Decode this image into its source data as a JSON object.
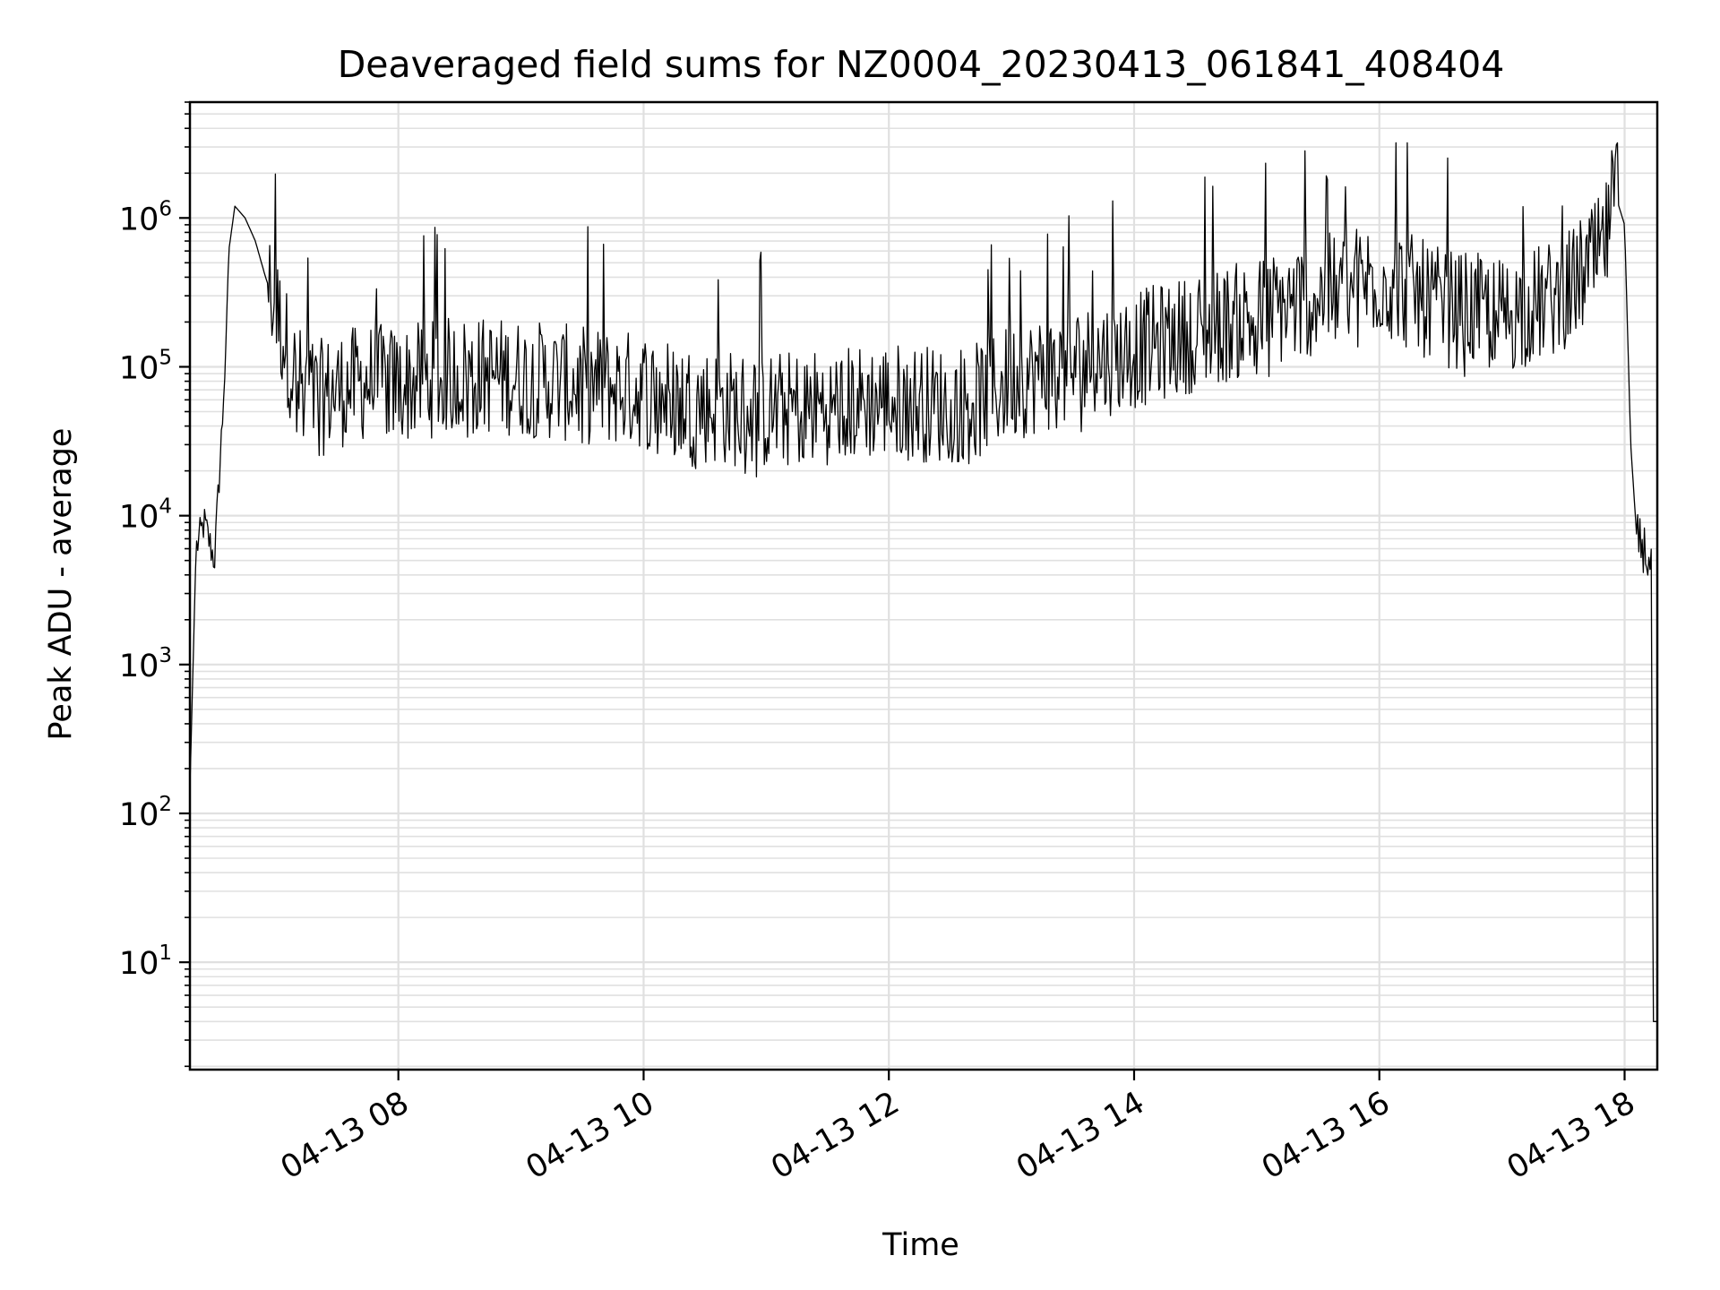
{
  "chart_data": {
    "type": "line",
    "title": "Deaveraged field sums for NZ0004_20230413_061841_408404",
    "xlabel": "Time",
    "ylabel": "Peak ADU - average",
    "yscale": "log",
    "ylim": [
      1.9,
      6000000
    ],
    "xlim": [
      "2023-04-13 06:18",
      "2023-04-13 18:16"
    ],
    "grid": true,
    "line_color": "#000000",
    "grid_color": "#e0e0e0",
    "x_ticks": [
      {
        "value": "2023-04-13 08:00",
        "label": "04-13 08"
      },
      {
        "value": "2023-04-13 10:00",
        "label": "04-13 10"
      },
      {
        "value": "2023-04-13 12:00",
        "label": "04-13 12"
      },
      {
        "value": "2023-04-13 14:00",
        "label": "04-13 14"
      },
      {
        "value": "2023-04-13 16:00",
        "label": "04-13 16"
      },
      {
        "value": "2023-04-13 18:00",
        "label": "04-13 18"
      }
    ],
    "y_ticks": [
      {
        "value": 10,
        "base": "10",
        "exp": "1"
      },
      {
        "value": 100,
        "base": "10",
        "exp": "2"
      },
      {
        "value": 1000,
        "base": "10",
        "exp": "3"
      },
      {
        "value": 10000,
        "base": "10",
        "exp": "4"
      },
      {
        "value": 100000,
        "base": "10",
        "exp": "5"
      },
      {
        "value": 1000000,
        "base": "10",
        "exp": "6"
      }
    ],
    "series": [
      {
        "x": [
          "2023-04-13 06:18",
          "2023-04-13 06:21",
          "2023-04-13 06:25",
          "2023-04-13 06:30",
          "2023-04-13 06:35",
          "2023-04-13 06:37",
          "2023-04-13 06:40",
          "2023-04-13 06:45",
          "2023-04-13 06:50",
          "2023-04-13 06:55",
          "2023-04-13 07:00",
          "2023-04-13 07:10",
          "2023-04-13 07:20",
          "2023-04-13 07:30",
          "2023-04-13 07:45",
          "2023-04-13 08:00",
          "2023-04-13 08:30",
          "2023-04-13 09:00",
          "2023-04-13 09:30",
          "2023-04-13 10:00",
          "2023-04-13 10:30",
          "2023-04-13 11:00",
          "2023-04-13 11:30",
          "2023-04-13 12:00",
          "2023-04-13 12:30",
          "2023-04-13 12:45",
          "2023-04-13 13:00",
          "2023-04-13 13:30",
          "2023-04-13 14:00",
          "2023-04-13 14:30",
          "2023-04-13 15:00",
          "2023-04-13 15:30",
          "2023-04-13 16:00",
          "2023-04-13 16:30",
          "2023-04-13 17:00",
          "2023-04-13 17:30",
          "2023-04-13 17:50",
          "2023-04-13 17:55",
          "2023-04-13 18:00",
          "2023-04-13 18:03",
          "2023-04-13 18:06",
          "2023-04-13 18:10",
          "2023-04-13 18:13",
          "2023-04-13 18:14",
          "2023-04-13 18:16"
        ],
        "y": [
          150,
          6000,
          9000,
          5000,
          80000,
          600000,
          1200000,
          1000000,
          700000,
          400000,
          250000,
          80000,
          60000,
          70000,
          80000,
          75000,
          90000,
          85000,
          75000,
          70000,
          55000,
          50000,
          55000,
          60000,
          55000,
          60000,
          80000,
          100000,
          130000,
          170000,
          220000,
          300000,
          400000,
          250000,
          220000,
          300000,
          600000,
          1500000,
          900000,
          30000,
          7000,
          6000,
          4000,
          4,
          4
        ]
      }
    ]
  }
}
